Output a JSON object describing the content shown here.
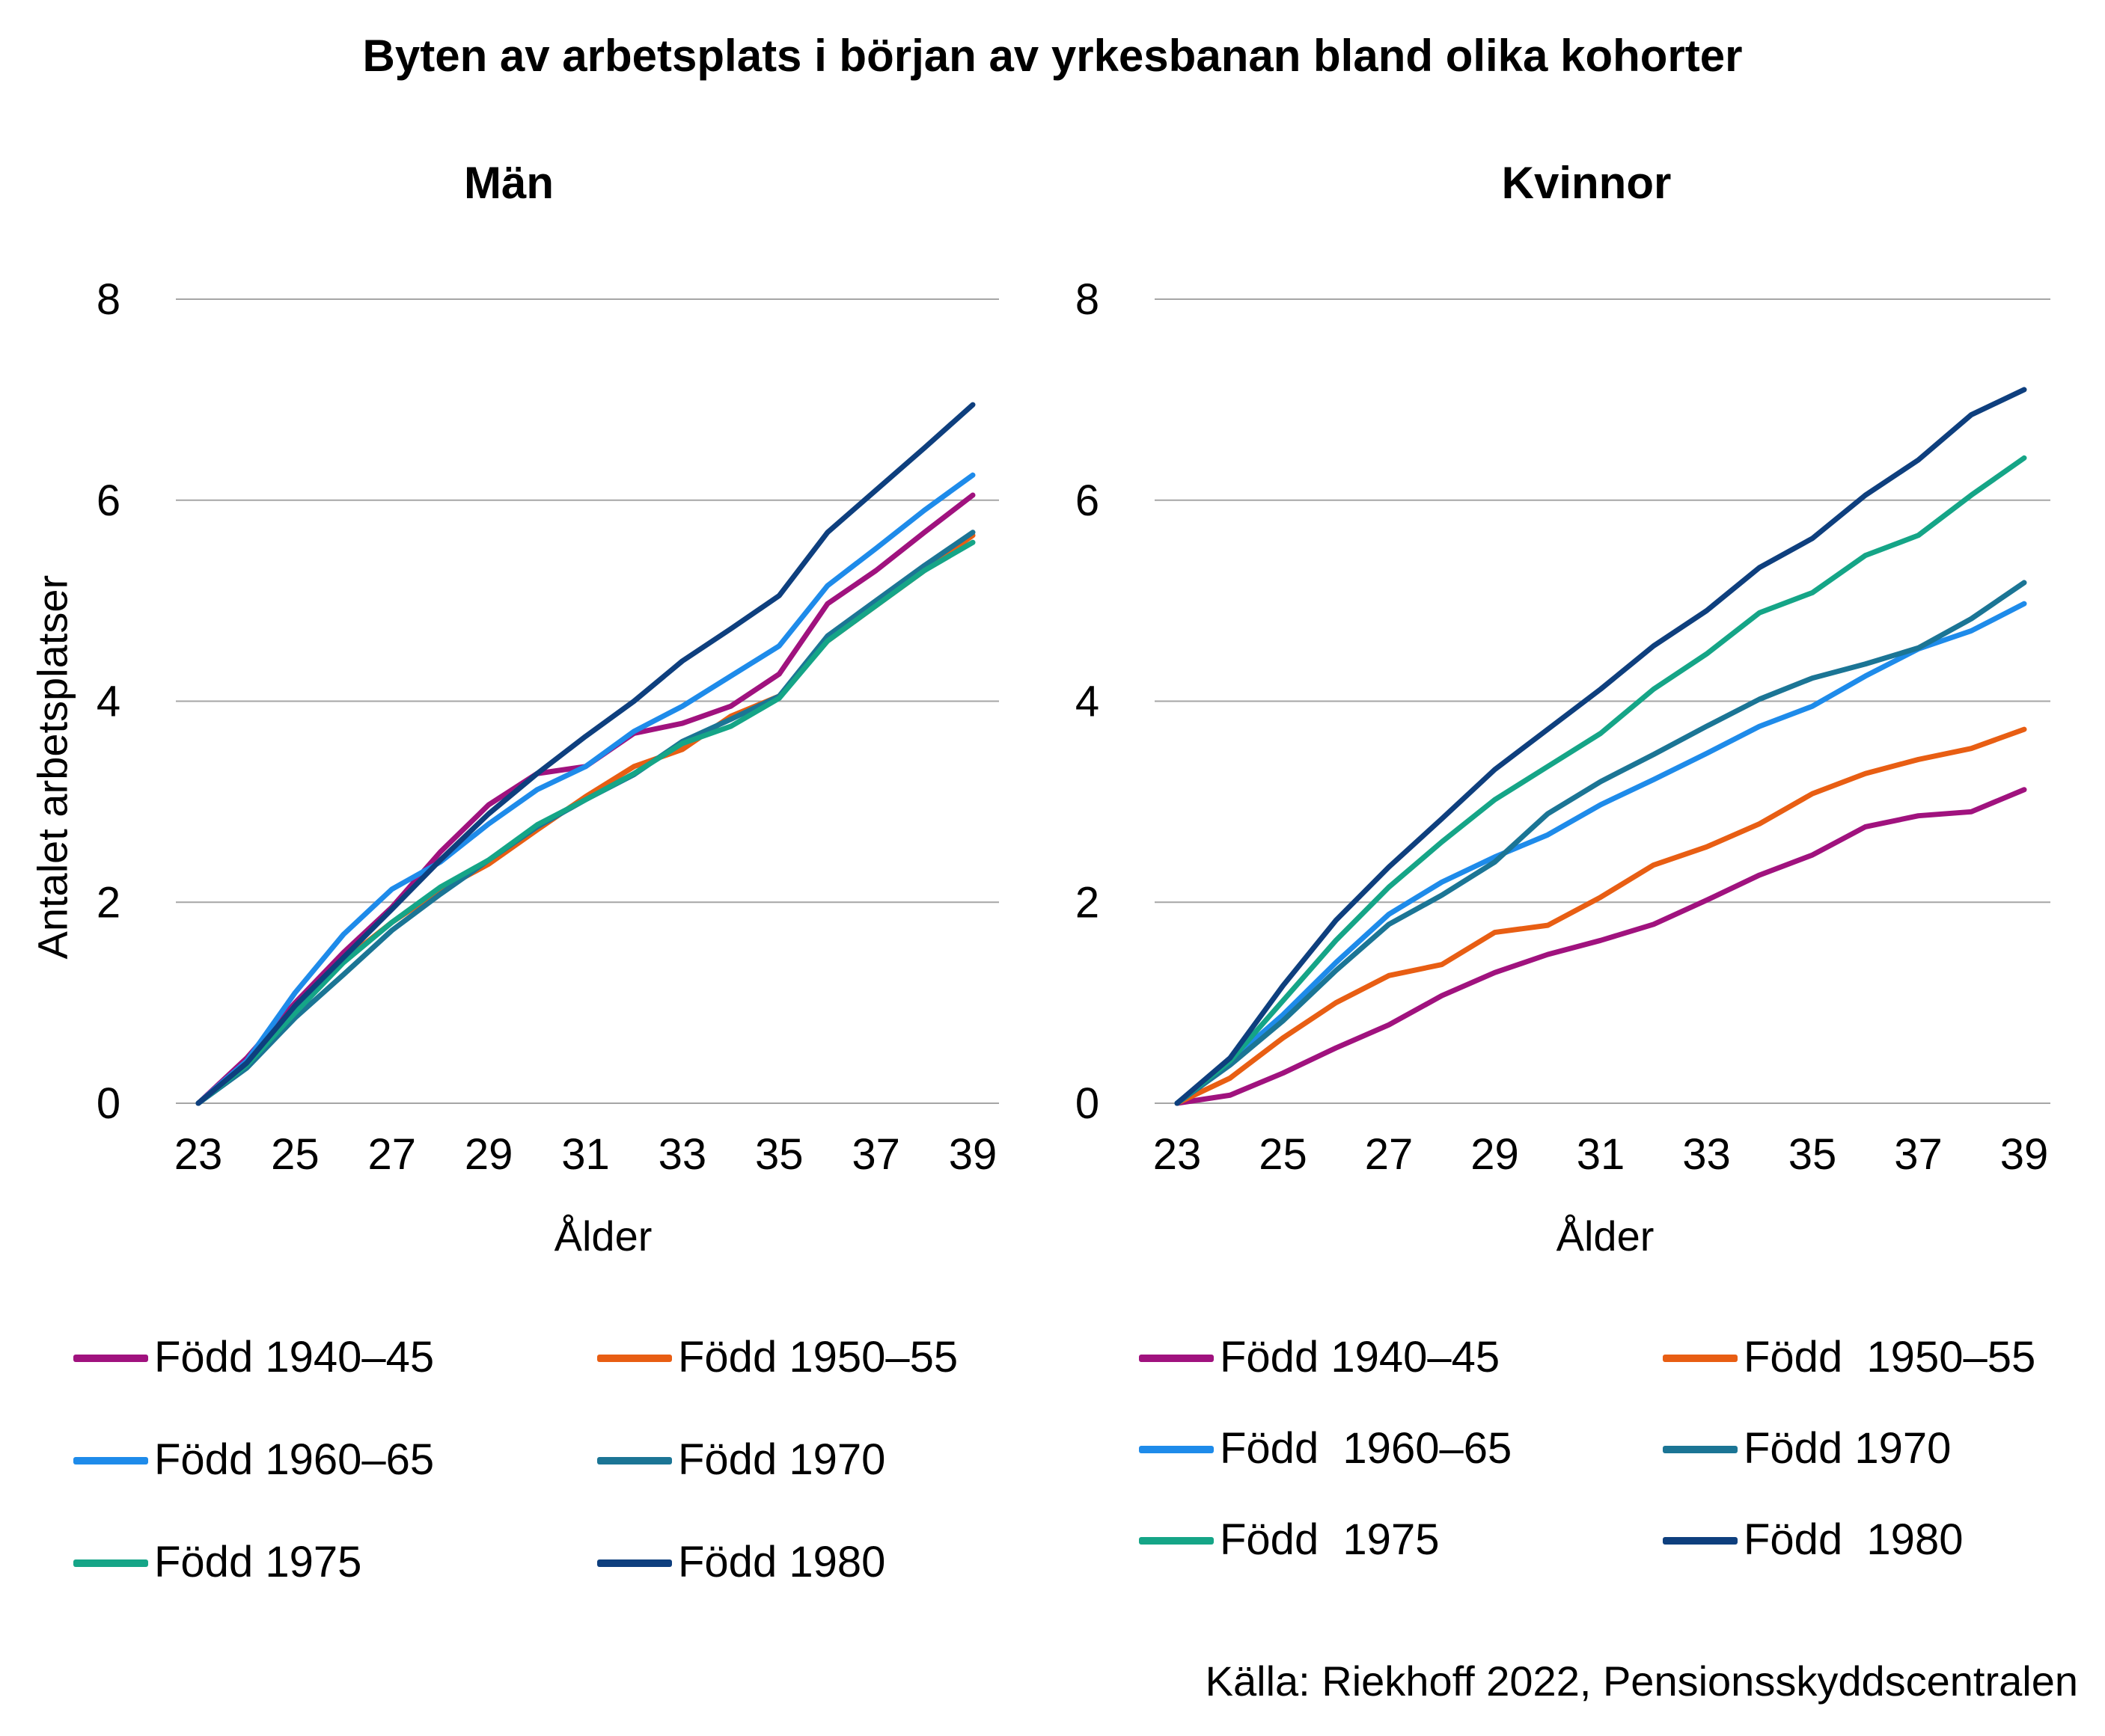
{
  "title": "Byten av arbetsplats i början av yrkesbanan bland olika kohorter",
  "source": "Källa: Riekhoff 2022, Pensionsskyddscentralen",
  "colors": {
    "born_1940_45": "#A0127E",
    "born_1950_55": "#E85E13",
    "born_1960_65": "#1E8BEA",
    "born_1970": "#1B7595",
    "born_1975": "#15A587",
    "born_1980": "#0E3F7E",
    "grid": "#a6a6a6"
  },
  "chart_data": [
    {
      "type": "line",
      "title": "Män",
      "xlabel": "Ålder",
      "ylabel": "Antalet arbetsplatser",
      "xlim": [
        23,
        39
      ],
      "ylim": [
        0,
        8
      ],
      "x_ticks": [
        "23",
        "25",
        "27",
        "29",
        "31",
        "33",
        "35",
        "37",
        "39"
      ],
      "y_ticks": [
        "0",
        "2",
        "4",
        "6",
        "8"
      ],
      "grid": true,
      "legend_position": "bottom",
      "x": [
        23,
        24,
        25,
        26,
        27,
        28,
        29,
        30,
        31,
        32,
        33,
        34,
        35,
        36,
        37,
        38,
        39
      ],
      "series": [
        {
          "name": "Född 1940–45",
          "color": "#A0127E",
          "values": [
            0,
            0.45,
            1.0,
            1.5,
            1.95,
            2.5,
            2.97,
            3.28,
            3.35,
            3.68,
            3.78,
            3.95,
            4.27,
            4.97,
            5.3,
            5.68,
            6.05
          ]
        },
        {
          "name": "Född 1950–55",
          "color": "#E85E13",
          "values": [
            0,
            0.4,
            0.92,
            1.42,
            1.8,
            2.12,
            2.38,
            2.72,
            3.05,
            3.35,
            3.52,
            3.85,
            4.05,
            4.6,
            4.95,
            5.3,
            5.65
          ]
        },
        {
          "name": "Född 1960–65",
          "color": "#1E8BEA",
          "values": [
            0,
            0.42,
            1.1,
            1.68,
            2.13,
            2.4,
            2.78,
            3.12,
            3.35,
            3.7,
            3.95,
            4.25,
            4.55,
            5.15,
            5.52,
            5.9,
            6.25
          ]
        },
        {
          "name": "Född 1970",
          "color": "#1B7595",
          "values": [
            0,
            0.35,
            0.85,
            1.28,
            1.72,
            2.08,
            2.42,
            2.75,
            3.02,
            3.27,
            3.6,
            3.82,
            4.05,
            4.65,
            5.0,
            5.35,
            5.68
          ]
        },
        {
          "name": "Född 1975",
          "color": "#15A587",
          "values": [
            0,
            0.38,
            0.9,
            1.4,
            1.8,
            2.15,
            2.42,
            2.77,
            3.02,
            3.28,
            3.58,
            3.75,
            4.03,
            4.6,
            4.95,
            5.3,
            5.58
          ]
        },
        {
          "name": "Född 1980",
          "color": "#0E3F7E",
          "values": [
            0,
            0.4,
            0.97,
            1.45,
            1.93,
            2.42,
            2.88,
            3.28,
            3.65,
            4.0,
            4.4,
            4.72,
            5.05,
            5.68,
            6.1,
            6.52,
            6.95
          ]
        }
      ]
    },
    {
      "type": "line",
      "title": "Kvinnor",
      "xlabel": "Ålder",
      "ylabel": "",
      "xlim": [
        23,
        39
      ],
      "ylim": [
        0,
        8
      ],
      "x_ticks": [
        "23",
        "25",
        "27",
        "29",
        "31",
        "33",
        "35",
        "37",
        "39"
      ],
      "y_ticks": [
        "0",
        "2",
        "4",
        "6",
        "8"
      ],
      "grid": true,
      "legend_position": "bottom",
      "x": [
        23,
        24,
        25,
        26,
        27,
        28,
        29,
        30,
        31,
        32,
        33,
        34,
        35,
        36,
        37,
        38,
        39
      ],
      "series": [
        {
          "name": "Född 1940–45",
          "color": "#A0127E",
          "values": [
            0,
            0.08,
            0.3,
            0.55,
            0.78,
            1.07,
            1.3,
            1.48,
            1.62,
            1.78,
            2.02,
            2.27,
            2.47,
            2.75,
            2.86,
            2.9,
            3.12
          ]
        },
        {
          "name": "Född  1950–55",
          "color": "#E85E13",
          "values": [
            0,
            0.25,
            0.65,
            1.0,
            1.27,
            1.38,
            1.7,
            1.77,
            2.05,
            2.37,
            2.55,
            2.78,
            3.08,
            3.28,
            3.42,
            3.53,
            3.72
          ]
        },
        {
          "name": "Född  1960–65",
          "color": "#1E8BEA",
          "values": [
            0,
            0.42,
            0.88,
            1.4,
            1.88,
            2.2,
            2.45,
            2.67,
            2.97,
            3.22,
            3.48,
            3.75,
            3.95,
            4.25,
            4.52,
            4.7,
            4.97
          ]
        },
        {
          "name": "Född 1970",
          "color": "#1B7595",
          "values": [
            0,
            0.38,
            0.82,
            1.32,
            1.78,
            2.07,
            2.4,
            2.88,
            3.2,
            3.47,
            3.75,
            4.02,
            4.23,
            4.37,
            4.53,
            4.82,
            5.18
          ]
        },
        {
          "name": "Född  1975",
          "color": "#15A587",
          "values": [
            0,
            0.42,
            1.02,
            1.62,
            2.15,
            2.6,
            3.02,
            3.35,
            3.68,
            4.12,
            4.47,
            4.88,
            5.08,
            5.45,
            5.65,
            6.05,
            6.42
          ]
        },
        {
          "name": "Född  1980",
          "color": "#0E3F7E",
          "values": [
            0,
            0.45,
            1.17,
            1.82,
            2.35,
            2.83,
            3.32,
            3.72,
            4.12,
            4.55,
            4.9,
            5.33,
            5.62,
            6.05,
            6.4,
            6.85,
            7.1
          ]
        }
      ]
    }
  ]
}
